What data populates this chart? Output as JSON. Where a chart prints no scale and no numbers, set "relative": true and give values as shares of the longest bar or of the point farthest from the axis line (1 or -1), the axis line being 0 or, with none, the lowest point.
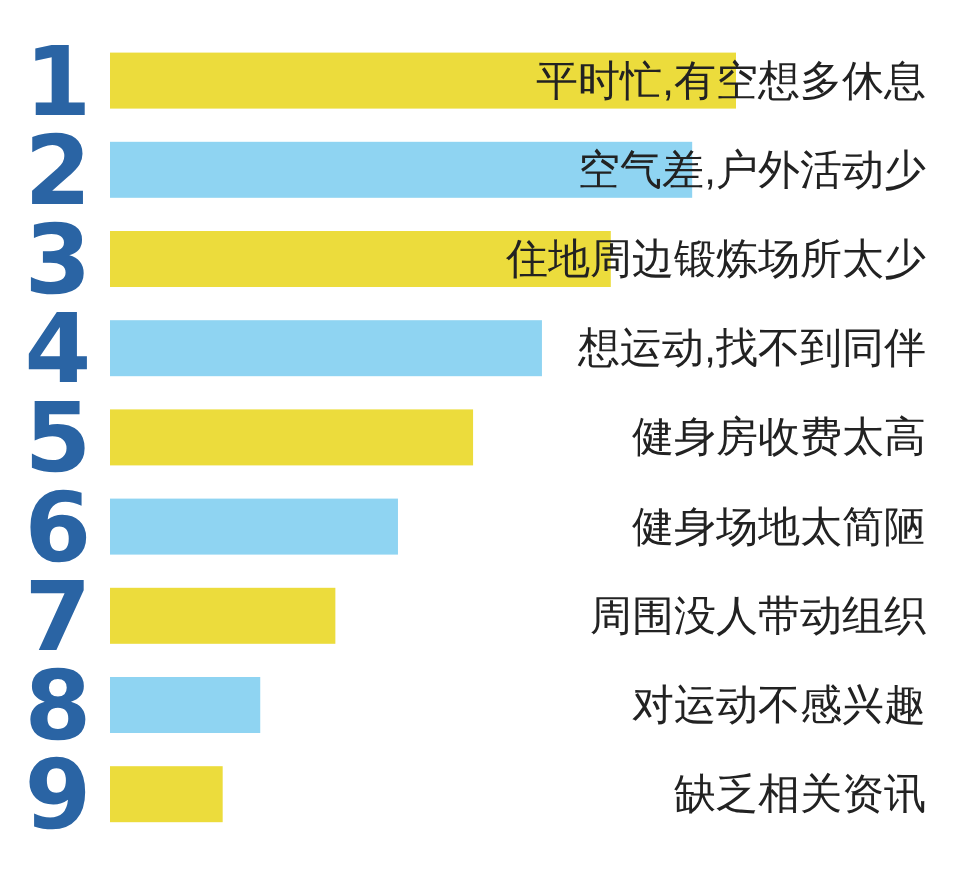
{
  "chart_data": {
    "type": "bar",
    "orientation": "horizontal",
    "relative": true,
    "categories": [
      "1",
      "2",
      "3",
      "4",
      "5",
      "6",
      "7",
      "8",
      "9"
    ],
    "values": [
      1,
      0.93,
      0.8,
      0.69,
      0.58,
      0.46,
      0.36,
      0.24,
      0.18
    ],
    "colors": [
      "#ecdc3c",
      "#8fd4f2",
      "#ecdc3c",
      "#8fd4f2",
      "#ecdc3c",
      "#8fd4f2",
      "#ecdc3c",
      "#8fd4f2",
      "#ecdc3c"
    ],
    "annotations": [
      "平时忙,有空想多休息",
      "空气差,户外活动少",
      "住地周边锻炼场所太少",
      "想运动,找不到同伴",
      "健身房收费太高",
      "健身场地太简陋",
      "周围没人带动组织",
      "对运动不感兴趣",
      "缺乏相关资讯"
    ]
  }
}
